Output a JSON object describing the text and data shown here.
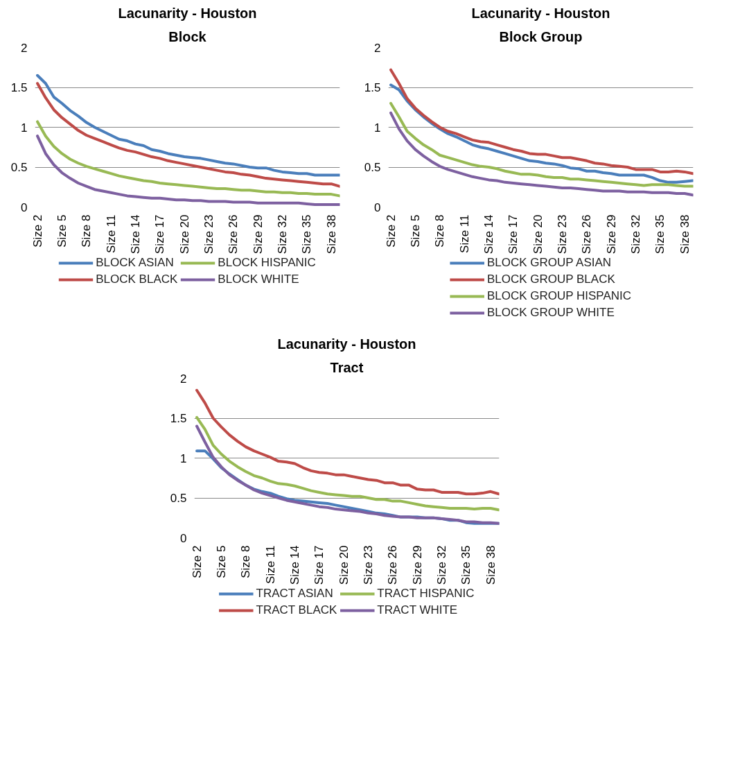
{
  "chart_data": [
    {
      "type": "line",
      "title": "Lacunarity - Houston",
      "subtitle": "Block",
      "categories": [
        "Size 2",
        null,
        null,
        "Size 5",
        null,
        null,
        "Size 8",
        null,
        null,
        "Size 11",
        null,
        null,
        "Size 14",
        null,
        null,
        "Size 17",
        null,
        null,
        "Size 20",
        null,
        null,
        "Size 23",
        null,
        null,
        "Size 26",
        null,
        null,
        "Size 29",
        null,
        null,
        "Size 32",
        null,
        null,
        "Size 35",
        null,
        null,
        "Size 38",
        null
      ],
      "ylim": [
        0,
        2
      ],
      "yticks": [
        0,
        0.5,
        1,
        1.5,
        2
      ],
      "grid": "y",
      "legend": "bottom",
      "marker": "none",
      "line_style": "solid",
      "series": [
        {
          "name": "BLOCK ASIAN",
          "color": "#4a7ebb",
          "values": [
            1.65,
            1.55,
            1.38,
            1.3,
            1.21,
            1.14,
            1.06,
            1.0,
            0.95,
            0.9,
            0.85,
            0.83,
            0.79,
            0.77,
            0.72,
            0.7,
            0.67,
            0.65,
            0.63,
            0.62,
            0.61,
            0.59,
            0.57,
            0.55,
            0.54,
            0.52,
            0.5,
            0.49,
            0.49,
            0.46,
            0.44,
            0.43,
            0.42,
            0.42,
            0.4,
            0.4,
            0.4,
            0.4
          ]
        },
        {
          "name": "BLOCK BLACK",
          "color": "#be4b48",
          "values": [
            1.55,
            1.37,
            1.22,
            1.12,
            1.04,
            0.96,
            0.9,
            0.86,
            0.82,
            0.78,
            0.74,
            0.71,
            0.69,
            0.66,
            0.63,
            0.61,
            0.58,
            0.56,
            0.54,
            0.52,
            0.5,
            0.48,
            0.46,
            0.44,
            0.43,
            0.41,
            0.4,
            0.38,
            0.36,
            0.35,
            0.34,
            0.33,
            0.32,
            0.31,
            0.3,
            0.29,
            0.29,
            0.26
          ]
        },
        {
          "name": "BLOCK HISPANIC",
          "color": "#98b954",
          "values": [
            1.07,
            0.89,
            0.76,
            0.67,
            0.6,
            0.55,
            0.51,
            0.48,
            0.45,
            0.42,
            0.39,
            0.37,
            0.35,
            0.33,
            0.32,
            0.3,
            0.29,
            0.28,
            0.27,
            0.26,
            0.25,
            0.24,
            0.23,
            0.23,
            0.22,
            0.21,
            0.21,
            0.2,
            0.19,
            0.19,
            0.18,
            0.18,
            0.17,
            0.17,
            0.16,
            0.16,
            0.16,
            0.14
          ]
        },
        {
          "name": "BLOCK WHITE",
          "color": "#7d60a0",
          "values": [
            0.89,
            0.67,
            0.53,
            0.43,
            0.36,
            0.3,
            0.26,
            0.22,
            0.2,
            0.18,
            0.16,
            0.14,
            0.13,
            0.12,
            0.11,
            0.11,
            0.1,
            0.09,
            0.09,
            0.08,
            0.08,
            0.07,
            0.07,
            0.07,
            0.06,
            0.06,
            0.06,
            0.05,
            0.05,
            0.05,
            0.05,
            0.05,
            0.05,
            0.04,
            0.03,
            0.03,
            0.03,
            0.03
          ]
        }
      ]
    },
    {
      "type": "line",
      "title": "Lacunarity - Houston",
      "subtitle": "Block Group",
      "categories": [
        "Size 2",
        null,
        null,
        "Size 5",
        null,
        null,
        "Size 8",
        null,
        null,
        "Size 11",
        null,
        null,
        "Size 14",
        null,
        null,
        "Size 17",
        null,
        null,
        "Size 20",
        null,
        null,
        "Size 23",
        null,
        null,
        "Size 26",
        null,
        null,
        "Size 29",
        null,
        null,
        "Size 32",
        null,
        null,
        "Size 35",
        null,
        null,
        "Size 38",
        null
      ],
      "ylim": [
        0,
        2
      ],
      "yticks": [
        0,
        0.5,
        1,
        1.5,
        2
      ],
      "grid": "y",
      "legend": "bottom",
      "marker": "none",
      "line_style": "solid",
      "series": [
        {
          "name": "BLOCK GROUP ASIAN",
          "color": "#4a7ebb",
          "values": [
            1.53,
            1.47,
            1.33,
            1.22,
            1.13,
            1.05,
            0.98,
            0.92,
            0.88,
            0.83,
            0.78,
            0.75,
            0.73,
            0.7,
            0.67,
            0.64,
            0.61,
            0.58,
            0.57,
            0.55,
            0.54,
            0.52,
            0.49,
            0.48,
            0.45,
            0.45,
            0.43,
            0.42,
            0.4,
            0.4,
            0.4,
            0.4,
            0.37,
            0.33,
            0.31,
            0.31,
            0.32,
            0.33
          ]
        },
        {
          "name": "BLOCK GROUP BLACK",
          "color": "#be4b48",
          "values": [
            1.72,
            1.55,
            1.36,
            1.24,
            1.15,
            1.07,
            1.0,
            0.95,
            0.92,
            0.88,
            0.84,
            0.82,
            0.81,
            0.78,
            0.75,
            0.72,
            0.7,
            0.67,
            0.66,
            0.66,
            0.64,
            0.62,
            0.62,
            0.6,
            0.58,
            0.55,
            0.54,
            0.52,
            0.51,
            0.5,
            0.47,
            0.47,
            0.47,
            0.44,
            0.44,
            0.45,
            0.44,
            0.42
          ]
        },
        {
          "name": "BLOCK GROUP HISPANIC",
          "color": "#98b954",
          "values": [
            1.3,
            1.13,
            0.95,
            0.86,
            0.78,
            0.72,
            0.65,
            0.62,
            0.59,
            0.56,
            0.53,
            0.51,
            0.5,
            0.48,
            0.45,
            0.43,
            0.41,
            0.41,
            0.4,
            0.38,
            0.37,
            0.37,
            0.35,
            0.35,
            0.34,
            0.33,
            0.32,
            0.31,
            0.3,
            0.29,
            0.28,
            0.27,
            0.28,
            0.28,
            0.28,
            0.27,
            0.26,
            0.26
          ]
        },
        {
          "name": "BLOCK GROUP WHITE",
          "color": "#7d60a0",
          "values": [
            1.18,
            0.98,
            0.83,
            0.72,
            0.64,
            0.57,
            0.51,
            0.47,
            0.44,
            0.41,
            0.38,
            0.36,
            0.34,
            0.33,
            0.31,
            0.3,
            0.29,
            0.28,
            0.27,
            0.26,
            0.25,
            0.24,
            0.24,
            0.23,
            0.22,
            0.21,
            0.2,
            0.2,
            0.2,
            0.19,
            0.19,
            0.19,
            0.18,
            0.18,
            0.18,
            0.17,
            0.17,
            0.15
          ]
        }
      ]
    },
    {
      "type": "line",
      "title": "Lacunarity - Houston",
      "subtitle": "Tract",
      "categories": [
        "Size 2",
        null,
        null,
        "Size 5",
        null,
        null,
        "Size 8",
        null,
        null,
        "Size 11",
        null,
        null,
        "Size 14",
        null,
        null,
        "Size 17",
        null,
        null,
        "Size 20",
        null,
        null,
        "Size 23",
        null,
        null,
        "Size 26",
        null,
        null,
        "Size 29",
        null,
        null,
        "Size 32",
        null,
        null,
        "Size 35",
        null,
        null,
        "Size 38",
        null
      ],
      "ylim": [
        0,
        2
      ],
      "yticks": [
        0,
        0.5,
        1,
        1.5,
        2
      ],
      "grid": "y",
      "legend": "bottom",
      "marker": "none",
      "line_style": "solid",
      "series": [
        {
          "name": "TRACT ASIAN",
          "color": "#4a7ebb",
          "values": [
            1.09,
            1.09,
            0.99,
            0.88,
            0.8,
            0.73,
            0.66,
            0.61,
            0.58,
            0.56,
            0.52,
            0.49,
            0.47,
            0.46,
            0.45,
            0.44,
            0.43,
            0.41,
            0.39,
            0.37,
            0.35,
            0.33,
            0.31,
            0.3,
            0.28,
            0.26,
            0.26,
            0.26,
            0.25,
            0.25,
            0.24,
            0.22,
            0.22,
            0.19,
            0.18,
            0.18,
            0.18,
            0.18
          ]
        },
        {
          "name": "TRACT BLACK",
          "color": "#be4b48",
          "values": [
            1.85,
            1.69,
            1.5,
            1.39,
            1.29,
            1.21,
            1.14,
            1.09,
            1.05,
            1.01,
            0.96,
            0.95,
            0.93,
            0.88,
            0.84,
            0.82,
            0.81,
            0.79,
            0.79,
            0.77,
            0.75,
            0.73,
            0.72,
            0.69,
            0.69,
            0.66,
            0.66,
            0.61,
            0.6,
            0.6,
            0.57,
            0.57,
            0.57,
            0.55,
            0.55,
            0.56,
            0.58,
            0.55
          ]
        },
        {
          "name": "TRACT HISPANIC",
          "color": "#98b954",
          "values": [
            1.51,
            1.36,
            1.16,
            1.05,
            0.96,
            0.89,
            0.83,
            0.78,
            0.75,
            0.71,
            0.68,
            0.67,
            0.65,
            0.62,
            0.59,
            0.57,
            0.55,
            0.54,
            0.53,
            0.52,
            0.52,
            0.5,
            0.48,
            0.48,
            0.46,
            0.46,
            0.44,
            0.42,
            0.4,
            0.39,
            0.38,
            0.37,
            0.37,
            0.37,
            0.36,
            0.37,
            0.37,
            0.35
          ]
        },
        {
          "name": "TRACT WHITE",
          "color": "#7d60a0",
          "values": [
            1.4,
            1.2,
            1.01,
            0.89,
            0.79,
            0.72,
            0.66,
            0.6,
            0.56,
            0.53,
            0.5,
            0.47,
            0.45,
            0.43,
            0.41,
            0.39,
            0.38,
            0.36,
            0.35,
            0.34,
            0.33,
            0.31,
            0.3,
            0.28,
            0.27,
            0.26,
            0.26,
            0.25,
            0.25,
            0.25,
            0.24,
            0.23,
            0.22,
            0.2,
            0.2,
            0.19,
            0.19,
            0.18
          ]
        }
      ]
    }
  ]
}
